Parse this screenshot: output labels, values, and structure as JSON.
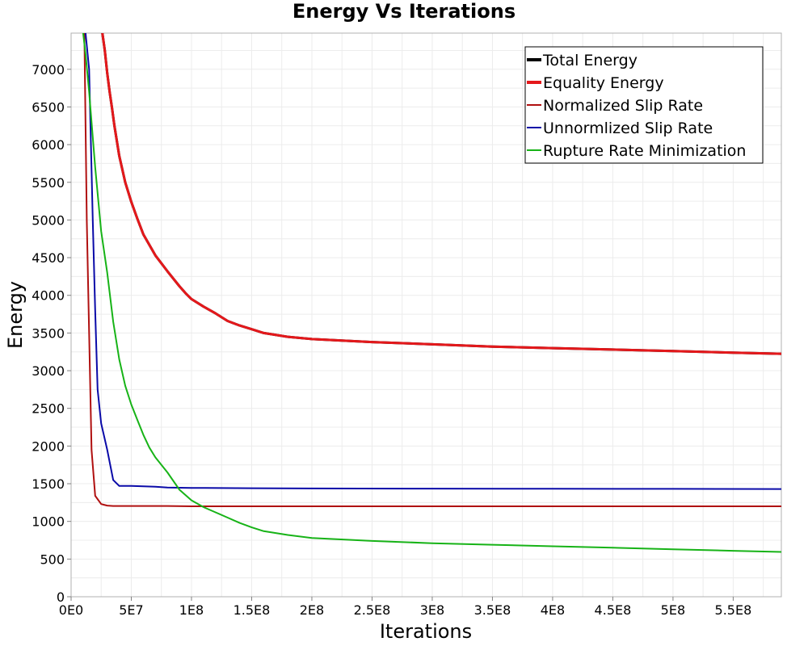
{
  "chart_data": {
    "type": "line",
    "title": "Energy Vs Iterations",
    "xlabel": "Iterations",
    "ylabel": "Energy",
    "xlim": [
      0,
      590000000
    ],
    "ylim": [
      0,
      7480
    ],
    "x_ticks": [
      {
        "value": 0,
        "label": "0E0"
      },
      {
        "value": 50000000,
        "label": "5E7"
      },
      {
        "value": 100000000,
        "label": "1E8"
      },
      {
        "value": 150000000,
        "label": "1.5E8"
      },
      {
        "value": 200000000,
        "label": "2E8"
      },
      {
        "value": 250000000,
        "label": "2.5E8"
      },
      {
        "value": 300000000,
        "label": "3E8"
      },
      {
        "value": 350000000,
        "label": "3.5E8"
      },
      {
        "value": 400000000,
        "label": "4E8"
      },
      {
        "value": 450000000,
        "label": "4.5E8"
      },
      {
        "value": 500000000,
        "label": "5E8"
      },
      {
        "value": 550000000,
        "label": "5.5E8"
      }
    ],
    "y_ticks": [
      {
        "value": 0,
        "label": "0"
      },
      {
        "value": 500,
        "label": "500"
      },
      {
        "value": 1000,
        "label": "1000"
      },
      {
        "value": 1500,
        "label": "1500"
      },
      {
        "value": 2000,
        "label": "2000"
      },
      {
        "value": 2500,
        "label": "2500"
      },
      {
        "value": 3000,
        "label": "3000"
      },
      {
        "value": 3500,
        "label": "3500"
      },
      {
        "value": 4000,
        "label": "4000"
      },
      {
        "value": 4500,
        "label": "4500"
      },
      {
        "value": 5000,
        "label": "5000"
      },
      {
        "value": 5500,
        "label": "5500"
      },
      {
        "value": 6000,
        "label": "6000"
      },
      {
        "value": 6500,
        "label": "6500"
      },
      {
        "value": 7000,
        "label": "7000"
      }
    ],
    "grid": true,
    "legend_placement": "top-right",
    "series": [
      {
        "name": "Total Energy",
        "color": "#000000",
        "line_weight": "thick",
        "x": [
          26000000,
          28000000,
          30000000,
          32000000,
          34000000,
          36000000,
          40000000,
          45000000,
          50000000,
          55000000,
          60000000,
          70000000,
          80000000,
          90000000,
          95000000,
          100000000,
          110000000,
          120000000,
          130000000,
          140000000,
          150000000,
          160000000,
          180000000,
          200000000,
          250000000,
          300000000,
          350000000,
          400000000,
          450000000,
          500000000,
          550000000,
          590000000
        ],
        "y": [
          7480,
          7250,
          6950,
          6700,
          6480,
          6250,
          5850,
          5500,
          5240,
          5020,
          4810,
          4530,
          4320,
          4120,
          4030,
          3950,
          3850,
          3760,
          3660,
          3600,
          3550,
          3500,
          3450,
          3420,
          3380,
          3350,
          3320,
          3300,
          3280,
          3260,
          3240,
          3225
        ]
      },
      {
        "name": "Equality Energy",
        "color": "#e4181b",
        "line_weight": "thick",
        "x": [
          26000000,
          28000000,
          30000000,
          32000000,
          34000000,
          36000000,
          40000000,
          45000000,
          50000000,
          55000000,
          60000000,
          70000000,
          80000000,
          90000000,
          95000000,
          100000000,
          110000000,
          120000000,
          130000000,
          140000000,
          150000000,
          160000000,
          180000000,
          200000000,
          250000000,
          300000000,
          350000000,
          400000000,
          450000000,
          500000000,
          550000000,
          590000000
        ],
        "y": [
          7480,
          7250,
          6950,
          6700,
          6480,
          6250,
          5850,
          5500,
          5240,
          5020,
          4810,
          4530,
          4320,
          4120,
          4030,
          3950,
          3850,
          3760,
          3660,
          3600,
          3550,
          3500,
          3450,
          3420,
          3380,
          3350,
          3320,
          3300,
          3280,
          3260,
          3240,
          3225
        ]
      },
      {
        "name": "Normalized Slip Rate",
        "color": "#b01010",
        "line_weight": "normal",
        "x": [
          11000000,
          13000000,
          15000000,
          17000000,
          20000000,
          25000000,
          30000000,
          35000000,
          40000000,
          60000000,
          80000000,
          100000000,
          200000000,
          300000000,
          400000000,
          500000000,
          590000000
        ],
        "y": [
          7480,
          5000,
          3500,
          1950,
          1340,
          1230,
          1210,
          1205,
          1205,
          1205,
          1205,
          1200,
          1200,
          1200,
          1200,
          1200,
          1200
        ]
      },
      {
        "name": "Unnormlized Slip Rate",
        "color": "#0a0aa8",
        "line_weight": "normal",
        "x": [
          12000000,
          15000000,
          18000000,
          20000000,
          22000000,
          25000000,
          30000000,
          35000000,
          40000000,
          45000000,
          50000000,
          60000000,
          70000000,
          80000000,
          100000000,
          150000000,
          200000000,
          300000000,
          400000000,
          500000000,
          590000000
        ],
        "y": [
          7480,
          7000,
          5000,
          3800,
          2750,
          2300,
          1950,
          1550,
          1470,
          1470,
          1470,
          1465,
          1460,
          1450,
          1445,
          1440,
          1437,
          1435,
          1433,
          1432,
          1430
        ]
      },
      {
        "name": "Rupture Rate Minimization",
        "color": "#17b317",
        "line_weight": "normal",
        "x": [
          10000000,
          12000000,
          15000000,
          20000000,
          25000000,
          30000000,
          35000000,
          40000000,
          45000000,
          50000000,
          55000000,
          60000000,
          65000000,
          70000000,
          80000000,
          90000000,
          100000000,
          110000000,
          120000000,
          130000000,
          140000000,
          150000000,
          160000000,
          180000000,
          200000000,
          250000000,
          300000000,
          350000000,
          400000000,
          450000000,
          500000000,
          550000000,
          590000000
        ],
        "y": [
          7480,
          7200,
          6700,
          5700,
          4850,
          4300,
          3650,
          3150,
          2800,
          2550,
          2350,
          2150,
          1980,
          1850,
          1650,
          1420,
          1280,
          1190,
          1120,
          1050,
          980,
          920,
          870,
          820,
          780,
          740,
          710,
          690,
          670,
          650,
          630,
          610,
          595
        ]
      }
    ]
  }
}
